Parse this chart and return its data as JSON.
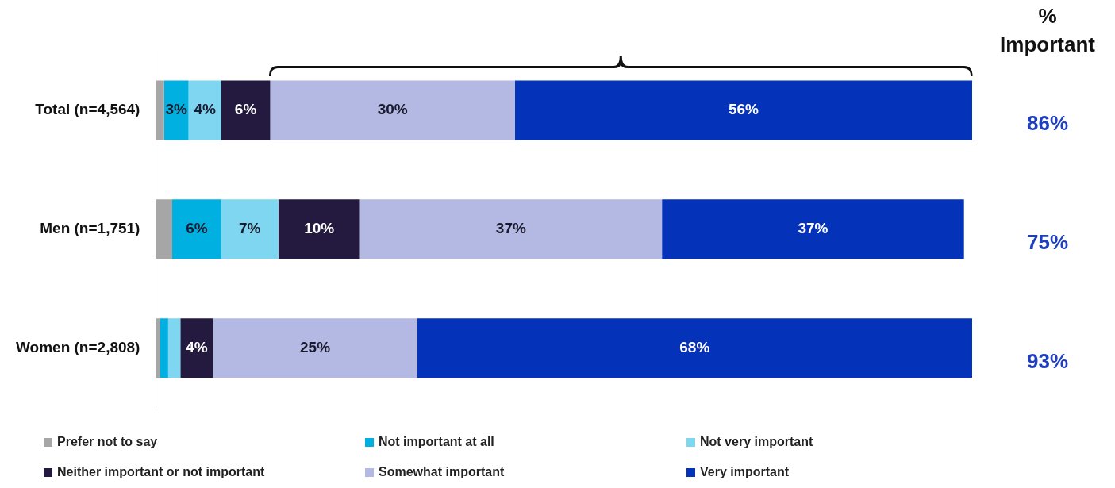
{
  "chart_data": {
    "type": "bar",
    "orientation": "horizontal",
    "stacked": true,
    "categories": [
      "Total (n=4,564)",
      "Men (n=1,751)",
      "Women (n=2,808)"
    ],
    "series": [
      {
        "name": "Prefer not to say",
        "color": "#a6a6a6",
        "values": [
          1,
          2,
          0.5
        ],
        "value_labels": [
          null,
          null,
          null
        ]
      },
      {
        "name": "Not important at all",
        "color": "#00b0e0",
        "values": [
          3,
          6,
          1
        ],
        "value_labels": [
          "3%",
          "6%",
          null
        ]
      },
      {
        "name": "Not very important",
        "color": "#7fd6f0",
        "values": [
          4,
          7,
          1.5
        ],
        "value_labels": [
          "4%",
          "7%",
          null
        ]
      },
      {
        "name": "Neither important or not important",
        "color": "#241a40",
        "values": [
          6,
          10,
          4
        ],
        "value_labels": [
          "6%",
          "10%",
          "4%"
        ]
      },
      {
        "name": "Somewhat important",
        "color": "#b3b9e3",
        "values": [
          30,
          37,
          25
        ],
        "value_labels": [
          "30%",
          "37%",
          "25%"
        ]
      },
      {
        "name": "Very important",
        "color": "#0432b8",
        "values": [
          56,
          37,
          68
        ],
        "value_labels": [
          "56%",
          "37%",
          "68%"
        ]
      }
    ],
    "xlim": [
      0,
      100
    ],
    "tick_labels": "y",
    "grid": false,
    "legend": "bottom",
    "annotations": [
      "% Important",
      "86%",
      "75%",
      "93%"
    ]
  }
}
